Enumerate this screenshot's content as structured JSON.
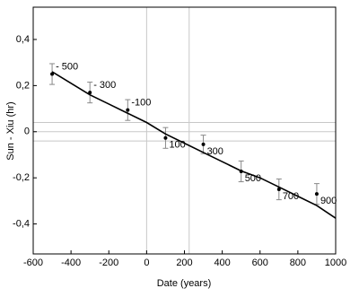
{
  "chart_data": {
    "type": "scatter",
    "x_label": "Date (years)",
    "y_label": "Sun - Xiu (hr)",
    "xlim": [
      -600,
      1000
    ],
    "xticks": [
      -600,
      -400,
      -200,
      0,
      200,
      400,
      600,
      800,
      1000
    ],
    "ylim": [
      -0.53,
      0.54
    ],
    "yticks": [
      {
        "value": -0.4,
        "label": "-0,4"
      },
      {
        "value": -0.2,
        "label": "-0,2"
      },
      0,
      {
        "value": 0.2,
        "label": "0,2"
      },
      {
        "value": 0.4,
        "label": "0,4"
      }
    ],
    "vlines": [
      0,
      225
    ],
    "hlines": [
      0.04,
      0,
      -0.04
    ],
    "series": [
      {
        "type": "errorbar",
        "color": "#000000",
        "error_color": "#888888",
        "x": [
          -500,
          -300,
          -100,
          100,
          300,
          500,
          700,
          900
        ],
        "values": [
          0.25,
          0.17,
          0.094,
          -0.027,
          -0.055,
          -0.172,
          -0.25,
          -0.27
        ],
        "errors": [
          0.045,
          0.045,
          0.045,
          0.045,
          0.04,
          0.045,
          0.045,
          0.045
        ],
        "labels": [
          "- 500",
          "- 300",
          "-100",
          "100",
          "300",
          "500",
          "700",
          "900"
        ]
      },
      {
        "type": "line",
        "color": "#000000",
        "x": [
          -500,
          -400,
          -300,
          -200,
          -100,
          0,
          100,
          200,
          300,
          400,
          500,
          600,
          700,
          800,
          900,
          1000
        ],
        "values": [
          0.26,
          0.21,
          0.16,
          0.12,
          0.08,
          0.04,
          -0.01,
          -0.05,
          -0.09,
          -0.13,
          -0.17,
          -0.2,
          -0.24,
          -0.28,
          -0.32,
          -0.375
        ]
      }
    ]
  }
}
